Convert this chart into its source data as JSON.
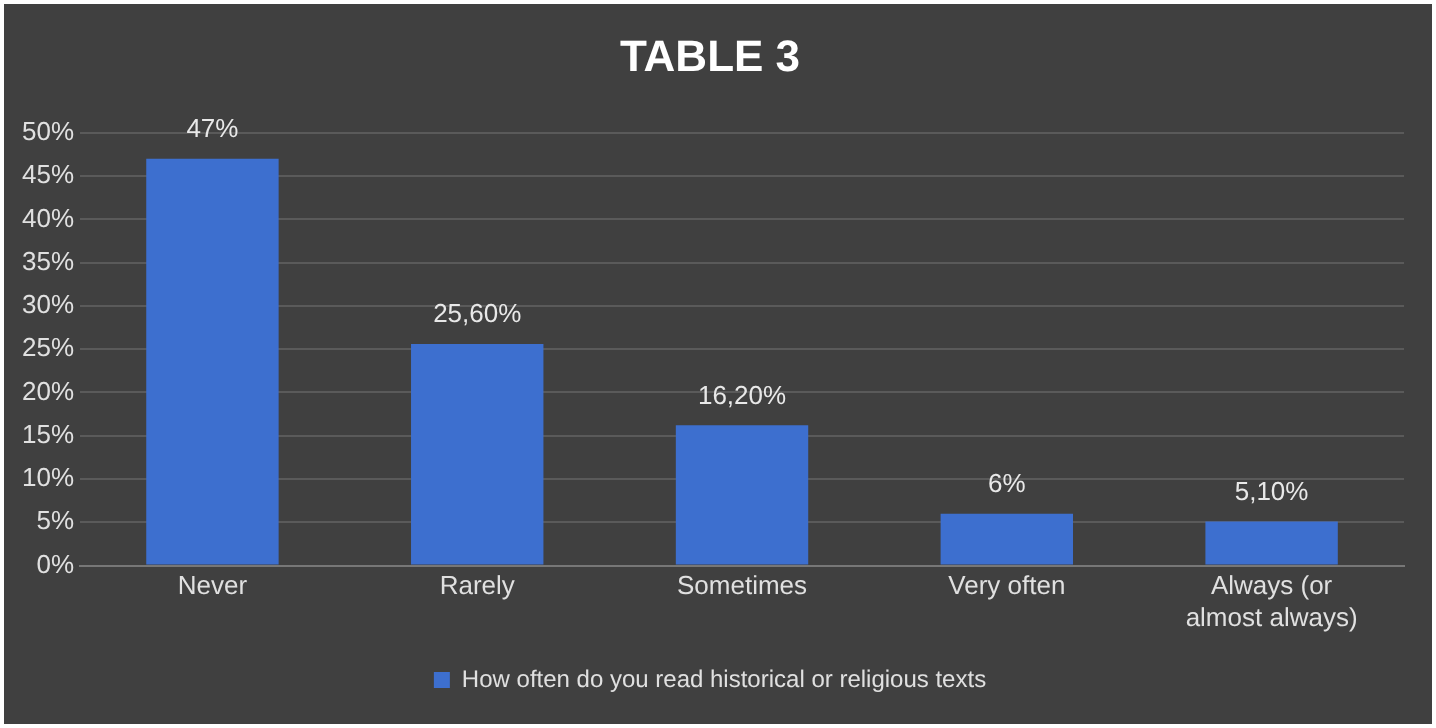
{
  "chart_data": {
    "type": "bar",
    "title": "TABLE 3",
    "categories": [
      "Never",
      "Rarely",
      "Sometimes",
      "Very often",
      "Always (or almost always)"
    ],
    "series": [
      {
        "name": "How often do you read historical or religious texts",
        "color": "#3d6fcf",
        "values": [
          47,
          25.6,
          16.2,
          6,
          5.1
        ],
        "value_labels": [
          "47%",
          "25,60%",
          "16,20%",
          "6%",
          "5,10%"
        ]
      }
    ],
    "ylim": [
      0,
      50
    ],
    "yticks": [
      {
        "value": 0,
        "label": "0%"
      },
      {
        "value": 5,
        "label": "5%"
      },
      {
        "value": 10,
        "label": "10%"
      },
      {
        "value": 15,
        "label": "15%"
      },
      {
        "value": 20,
        "label": "20%"
      },
      {
        "value": 25,
        "label": "25%"
      },
      {
        "value": 30,
        "label": "30%"
      },
      {
        "value": 35,
        "label": "35%"
      },
      {
        "value": 40,
        "label": "40%"
      },
      {
        "value": 45,
        "label": "45%"
      },
      {
        "value": 50,
        "label": "50%"
      }
    ],
    "grid": "y",
    "legend": "bottom"
  }
}
